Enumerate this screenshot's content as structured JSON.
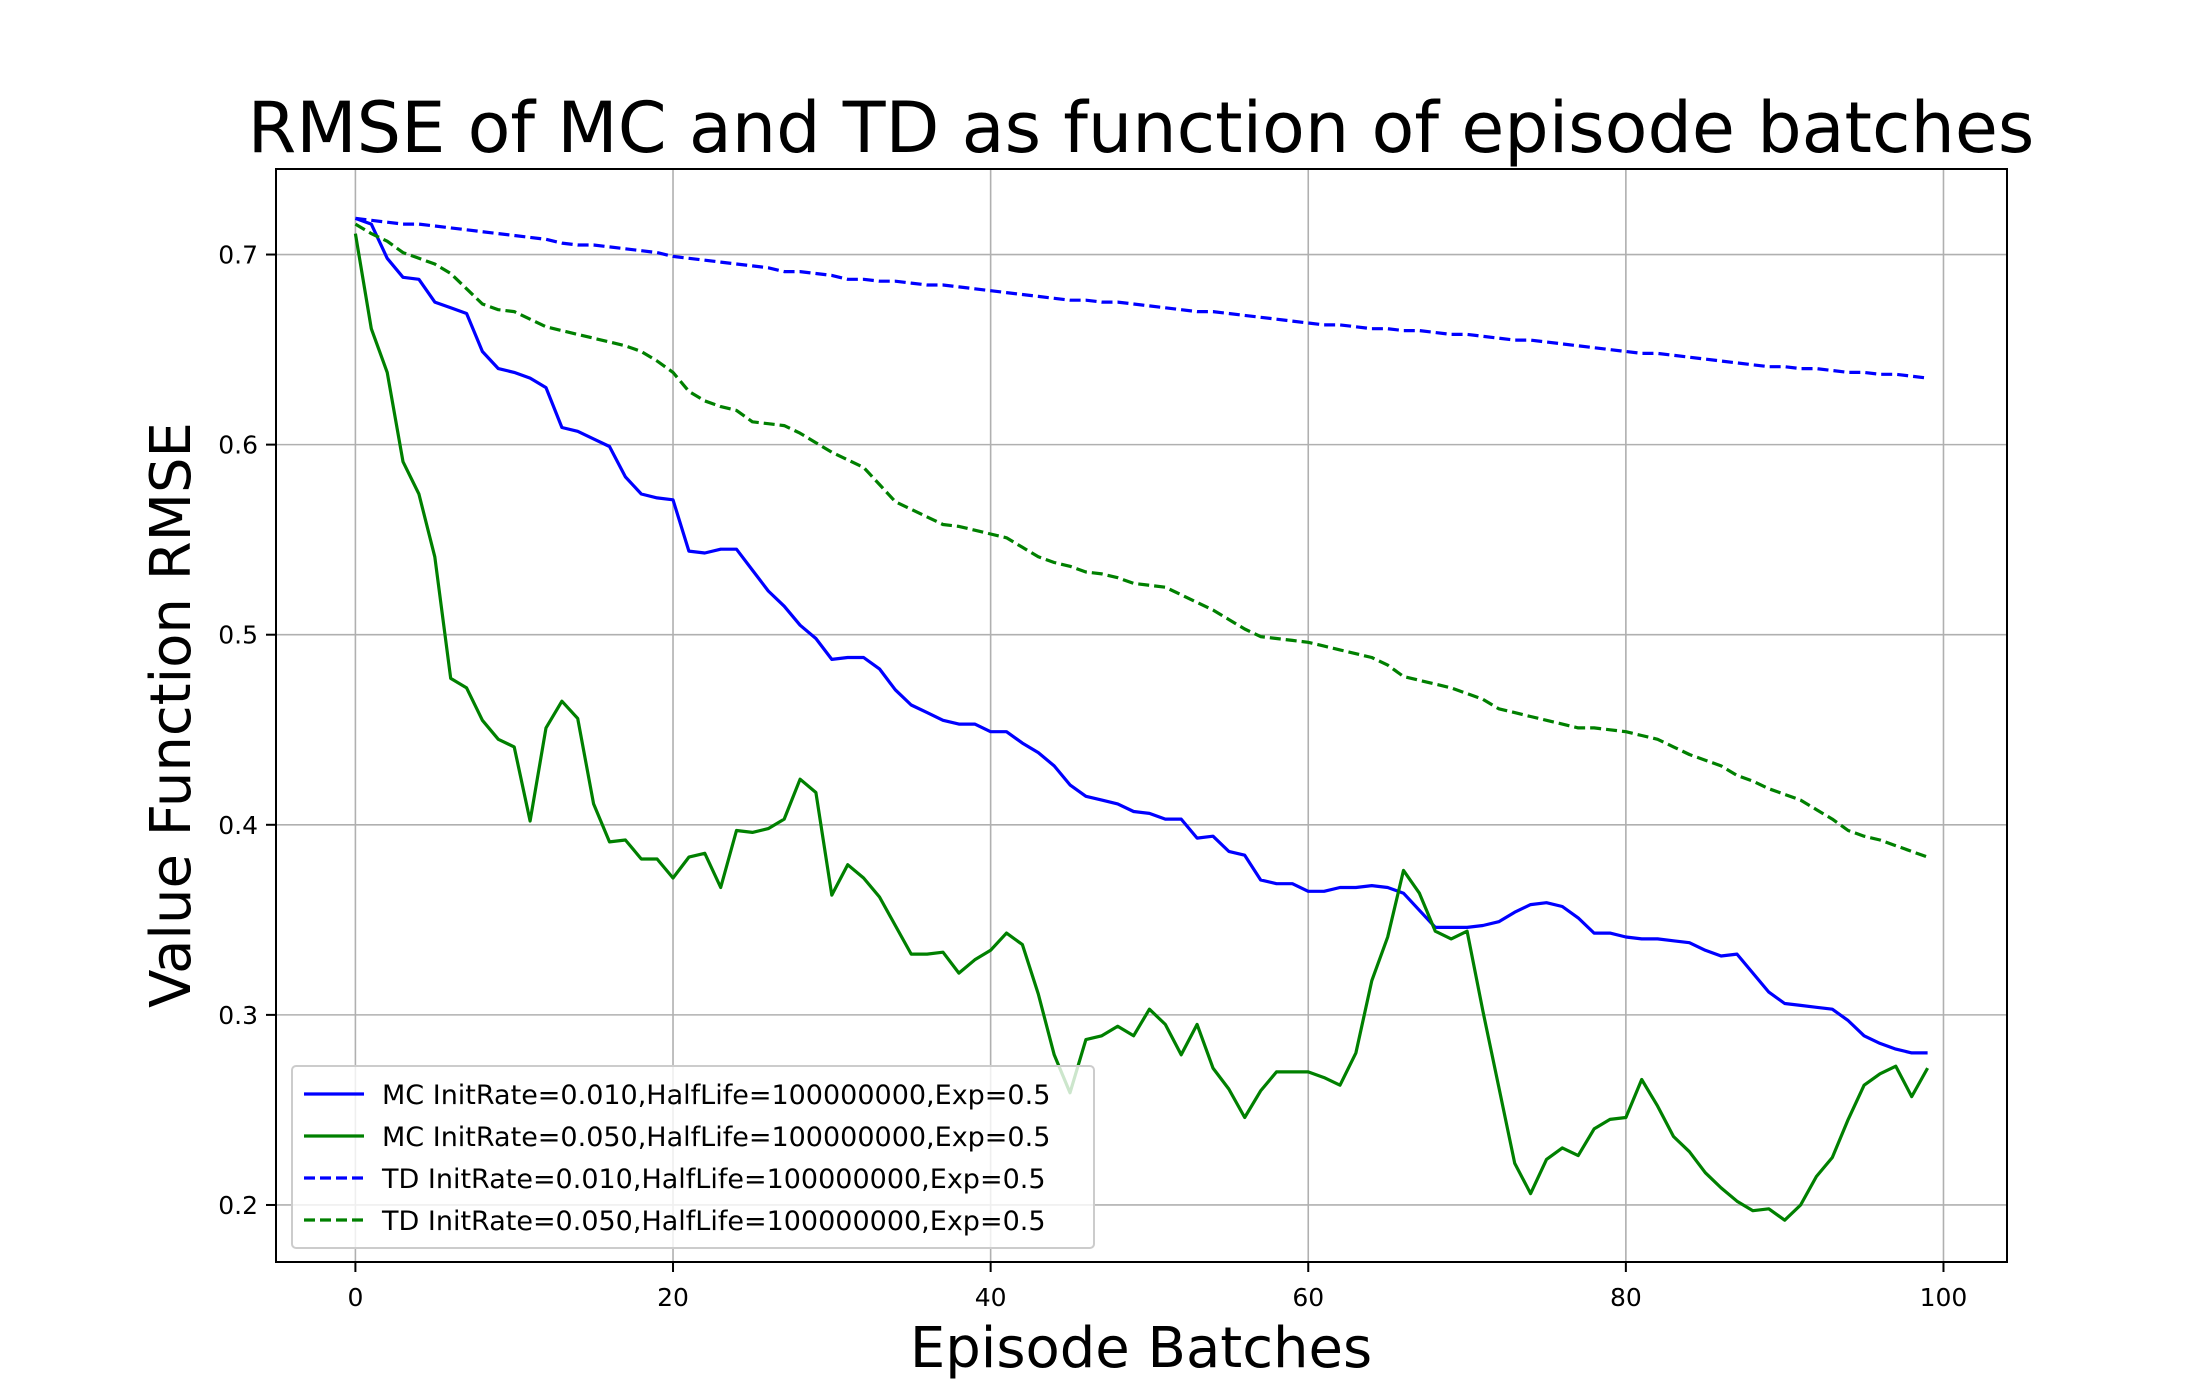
{
  "chart_data": {
    "type": "line",
    "title": "RMSE of MC and TD as function of episode batches",
    "xlabel": "Episode Batches",
    "ylabel": "Value Function RMSE",
    "xlim": [
      -5,
      104
    ],
    "ylim": [
      0.17,
      0.745
    ],
    "xticks": [
      0,
      20,
      40,
      60,
      80,
      100
    ],
    "xtick_labels": [
      "0",
      "20",
      "40",
      "60",
      "80",
      "100"
    ],
    "yticks": [
      0.2,
      0.3,
      0.4,
      0.5,
      0.6,
      0.7
    ],
    "ytick_labels": [
      "0.2",
      "0.3",
      "0.4",
      "0.5",
      "0.6",
      "0.7"
    ],
    "grid": true,
    "legend_position": "lower-left",
    "x": [
      0,
      1,
      2,
      3,
      4,
      5,
      6,
      7,
      8,
      9,
      10,
      11,
      12,
      13,
      14,
      15,
      16,
      17,
      18,
      19,
      20,
      21,
      22,
      23,
      24,
      25,
      26,
      27,
      28,
      29,
      30,
      31,
      32,
      33,
      34,
      35,
      36,
      37,
      38,
      39,
      40,
      41,
      42,
      43,
      44,
      45,
      46,
      47,
      48,
      49,
      50,
      51,
      52,
      53,
      54,
      55,
      56,
      57,
      58,
      59,
      60,
      61,
      62,
      63,
      64,
      65,
      66,
      67,
      68,
      69,
      70,
      71,
      72,
      73,
      74,
      75,
      76,
      77,
      78,
      79,
      80,
      81,
      82,
      83,
      84,
      85,
      86,
      87,
      88,
      89,
      90,
      91,
      92,
      93,
      94,
      95,
      96,
      97,
      98,
      99
    ],
    "series": [
      {
        "name": "MC InitRate=0.010,HalfLife=100000000,Exp=0.5",
        "color": "#0000ff",
        "dash": "solid",
        "values": [
          0.719,
          0.716,
          0.698,
          0.688,
          0.687,
          0.675,
          0.672,
          0.669,
          0.649,
          0.64,
          0.638,
          0.635,
          0.63,
          0.609,
          0.607,
          0.603,
          0.599,
          0.583,
          0.574,
          0.572,
          0.571,
          0.544,
          0.543,
          0.545,
          0.545,
          0.534,
          0.523,
          0.515,
          0.505,
          0.498,
          0.487,
          0.488,
          0.488,
          0.482,
          0.471,
          0.463,
          0.459,
          0.455,
          0.453,
          0.453,
          0.449,
          0.449,
          0.443,
          0.438,
          0.431,
          0.421,
          0.415,
          0.413,
          0.411,
          0.407,
          0.406,
          0.403,
          0.403,
          0.393,
          0.394,
          0.386,
          0.384,
          0.371,
          0.369,
          0.369,
          0.365,
          0.365,
          0.367,
          0.367,
          0.368,
          0.367,
          0.364,
          0.355,
          0.346,
          0.346,
          0.346,
          0.347,
          0.349,
          0.354,
          0.358,
          0.359,
          0.357,
          0.351,
          0.343,
          0.343,
          0.341,
          0.34,
          0.34,
          0.339,
          0.338,
          0.334,
          0.331,
          0.332,
          0.322,
          0.312,
          0.306,
          0.305,
          0.304,
          0.303,
          0.297,
          0.289,
          0.285,
          0.282,
          0.28,
          0.28
        ]
      },
      {
        "name": "MC InitRate=0.050,HalfLife=100000000,Exp=0.5",
        "color": "#008000",
        "dash": "solid",
        "values": [
          0.711,
          0.661,
          0.638,
          0.591,
          0.574,
          0.541,
          0.477,
          0.472,
          0.455,
          0.445,
          0.441,
          0.402,
          0.451,
          0.465,
          0.456,
          0.411,
          0.391,
          0.392,
          0.382,
          0.382,
          0.372,
          0.383,
          0.385,
          0.367,
          0.397,
          0.396,
          0.398,
          0.403,
          0.424,
          0.417,
          0.363,
          0.379,
          0.372,
          0.362,
          0.347,
          0.332,
          0.332,
          0.333,
          0.322,
          0.329,
          0.334,
          0.343,
          0.337,
          0.311,
          0.279,
          0.259,
          0.287,
          0.289,
          0.294,
          0.289,
          0.303,
          0.295,
          0.279,
          0.295,
          0.272,
          0.261,
          0.246,
          0.26,
          0.27,
          0.27,
          0.27,
          0.267,
          0.263,
          0.28,
          0.318,
          0.341,
          0.376,
          0.364,
          0.344,
          0.34,
          0.344,
          0.302,
          0.262,
          0.222,
          0.206,
          0.224,
          0.23,
          0.226,
          0.24,
          0.245,
          0.246,
          0.266,
          0.252,
          0.236,
          0.228,
          0.217,
          0.209,
          0.202,
          0.197,
          0.198,
          0.192,
          0.2,
          0.215,
          0.225,
          0.245,
          0.263,
          0.269,
          0.273,
          0.257,
          0.272
        ]
      },
      {
        "name": "TD InitRate=0.010,HalfLife=100000000,Exp=0.5",
        "color": "#0000ff",
        "dash": "dashed",
        "values": [
          0.719,
          0.718,
          0.717,
          0.716,
          0.716,
          0.715,
          0.714,
          0.713,
          0.712,
          0.711,
          0.71,
          0.709,
          0.708,
          0.706,
          0.705,
          0.705,
          0.704,
          0.703,
          0.702,
          0.701,
          0.699,
          0.698,
          0.697,
          0.696,
          0.695,
          0.694,
          0.693,
          0.691,
          0.691,
          0.69,
          0.689,
          0.687,
          0.687,
          0.686,
          0.686,
          0.685,
          0.684,
          0.684,
          0.683,
          0.682,
          0.681,
          0.68,
          0.679,
          0.678,
          0.677,
          0.676,
          0.676,
          0.675,
          0.675,
          0.674,
          0.673,
          0.672,
          0.671,
          0.67,
          0.67,
          0.669,
          0.668,
          0.667,
          0.666,
          0.665,
          0.664,
          0.663,
          0.663,
          0.662,
          0.661,
          0.661,
          0.66,
          0.66,
          0.659,
          0.658,
          0.658,
          0.657,
          0.656,
          0.655,
          0.655,
          0.654,
          0.653,
          0.652,
          0.651,
          0.65,
          0.649,
          0.648,
          0.648,
          0.647,
          0.646,
          0.645,
          0.644,
          0.643,
          0.642,
          0.641,
          0.641,
          0.64,
          0.64,
          0.639,
          0.638,
          0.638,
          0.637,
          0.637,
          0.636,
          0.635
        ]
      },
      {
        "name": "TD InitRate=0.050,HalfLife=100000000,Exp=0.5",
        "color": "#008000",
        "dash": "dashed",
        "values": [
          0.716,
          0.711,
          0.707,
          0.701,
          0.698,
          0.695,
          0.69,
          0.682,
          0.674,
          0.671,
          0.67,
          0.666,
          0.662,
          0.66,
          0.658,
          0.656,
          0.654,
          0.652,
          0.649,
          0.644,
          0.638,
          0.628,
          0.623,
          0.62,
          0.618,
          0.612,
          0.611,
          0.61,
          0.606,
          0.601,
          0.596,
          0.592,
          0.588,
          0.579,
          0.57,
          0.566,
          0.562,
          0.558,
          0.557,
          0.555,
          0.553,
          0.551,
          0.546,
          0.541,
          0.538,
          0.536,
          0.533,
          0.532,
          0.53,
          0.527,
          0.526,
          0.525,
          0.521,
          0.517,
          0.513,
          0.508,
          0.503,
          0.499,
          0.498,
          0.497,
          0.496,
          0.494,
          0.492,
          0.49,
          0.488,
          0.484,
          0.478,
          0.476,
          0.474,
          0.472,
          0.469,
          0.466,
          0.461,
          0.459,
          0.457,
          0.455,
          0.453,
          0.451,
          0.451,
          0.45,
          0.449,
          0.447,
          0.445,
          0.441,
          0.437,
          0.434,
          0.431,
          0.426,
          0.423,
          0.419,
          0.416,
          0.413,
          0.408,
          0.403,
          0.397,
          0.394,
          0.392,
          0.389,
          0.386,
          0.383
        ]
      }
    ]
  }
}
